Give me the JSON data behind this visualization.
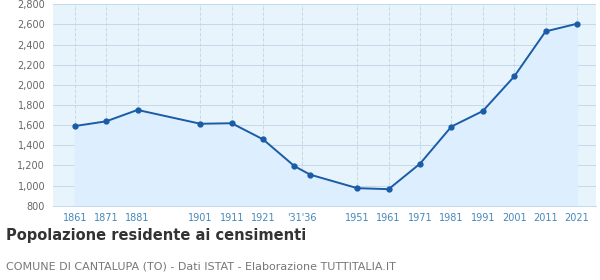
{
  "years": [
    1861,
    1871,
    1881,
    1901,
    1911,
    1921,
    1931,
    1936,
    1951,
    1961,
    1971,
    1981,
    1991,
    2001,
    2011,
    2021
  ],
  "population": [
    1591,
    1638,
    1751,
    1614,
    1619,
    1459,
    1193,
    1109,
    975,
    965,
    1218,
    1586,
    1740,
    2083,
    2530,
    2606
  ],
  "x_tick_positions": [
    1861,
    1871,
    1881,
    1901,
    1911,
    1921,
    1933.5,
    1951,
    1961,
    1971,
    1981,
    1991,
    2001,
    2011,
    2021
  ],
  "x_tick_labels": [
    "1861",
    "1871",
    "1881",
    "1901",
    "1911",
    "1921",
    "'31'36",
    "1951",
    "1961",
    "1971",
    "1981",
    "1991",
    "2001",
    "2011",
    "2021"
  ],
  "ylim": [
    800,
    2800
  ],
  "yticks": [
    800,
    1000,
    1200,
    1400,
    1600,
    1800,
    2000,
    2200,
    2400,
    2600,
    2800
  ],
  "xlim_left": 1854,
  "xlim_right": 2027,
  "line_color": "#1a5ca8",
  "marker_color": "#1a5ca8",
  "fill_color": "#ddeeff",
  "grid_color": "#c5d9ea",
  "background_color": "#e8f4fc",
  "title": "Popolazione residente ai censimenti",
  "subtitle": "COMUNE DI CANTALUPA (TO) - Dati ISTAT - Elaborazione TUTTITALIA.IT",
  "title_fontsize": 10.5,
  "subtitle_fontsize": 8,
  "tick_color": "#4488bb",
  "ytick_color": "#666666"
}
